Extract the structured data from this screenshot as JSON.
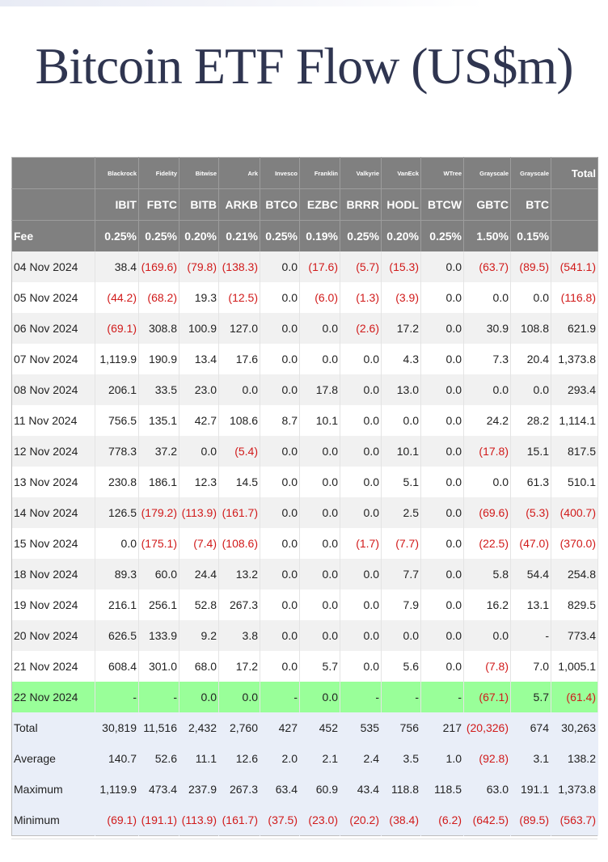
{
  "title": "Bitcoin ETF Flow (US$m)",
  "colors": {
    "header_bg": "#808080",
    "negative": "#d11a1a",
    "highlight": "#99ff99",
    "summary_bg": "#e9eef8"
  },
  "issuers": [
    "Blackrock",
    "Fidelity",
    "Bitwise",
    "Ark",
    "Invesco",
    "Franklin",
    "Valkyrie",
    "VanEck",
    "WTree",
    "Grayscale",
    "Grayscale"
  ],
  "total_header": "Total",
  "tickers": [
    "IBIT",
    "FBTC",
    "BITB",
    "ARKB",
    "BTCO",
    "EZBC",
    "BRRR",
    "HODL",
    "BTCW",
    "GBTC",
    "BTC"
  ],
  "fee_label": "Fee",
  "fees": [
    "0.25%",
    "0.25%",
    "0.20%",
    "0.21%",
    "0.25%",
    "0.19%",
    "0.25%",
    "0.20%",
    "0.25%",
    "1.50%",
    "0.15%"
  ],
  "rows": [
    {
      "date": "04 Nov 2024",
      "values": [
        "38.4",
        "(169.6)",
        "(79.8)",
        "(138.3)",
        "0.0",
        "(17.6)",
        "(5.7)",
        "(15.3)",
        "0.0",
        "(63.7)",
        "(89.5)"
      ],
      "total": "(541.1)"
    },
    {
      "date": "05 Nov 2024",
      "values": [
        "(44.2)",
        "(68.2)",
        "19.3",
        "(12.5)",
        "0.0",
        "(6.0)",
        "(1.3)",
        "(3.9)",
        "0.0",
        "0.0",
        "0.0"
      ],
      "total": "(116.8)"
    },
    {
      "date": "06 Nov 2024",
      "values": [
        "(69.1)",
        "308.8",
        "100.9",
        "127.0",
        "0.0",
        "0.0",
        "(2.6)",
        "17.2",
        "0.0",
        "30.9",
        "108.8"
      ],
      "total": "621.9"
    },
    {
      "date": "07 Nov 2024",
      "values": [
        "1,119.9",
        "190.9",
        "13.4",
        "17.6",
        "0.0",
        "0.0",
        "0.0",
        "4.3",
        "0.0",
        "7.3",
        "20.4"
      ],
      "total": "1,373.8"
    },
    {
      "date": "08 Nov 2024",
      "values": [
        "206.1",
        "33.5",
        "23.0",
        "0.0",
        "0.0",
        "17.8",
        "0.0",
        "13.0",
        "0.0",
        "0.0",
        "0.0"
      ],
      "total": "293.4"
    },
    {
      "date": "11 Nov 2024",
      "values": [
        "756.5",
        "135.1",
        "42.7",
        "108.6",
        "8.7",
        "10.1",
        "0.0",
        "0.0",
        "0.0",
        "24.2",
        "28.2"
      ],
      "total": "1,114.1"
    },
    {
      "date": "12 Nov 2024",
      "values": [
        "778.3",
        "37.2",
        "0.0",
        "(5.4)",
        "0.0",
        "0.0",
        "0.0",
        "10.1",
        "0.0",
        "(17.8)",
        "15.1"
      ],
      "total": "817.5"
    },
    {
      "date": "13 Nov 2024",
      "values": [
        "230.8",
        "186.1",
        "12.3",
        "14.5",
        "0.0",
        "0.0",
        "0.0",
        "5.1",
        "0.0",
        "0.0",
        "61.3"
      ],
      "total": "510.1"
    },
    {
      "date": "14 Nov 2024",
      "values": [
        "126.5",
        "(179.2)",
        "(113.9)",
        "(161.7)",
        "0.0",
        "0.0",
        "0.0",
        "2.5",
        "0.0",
        "(69.6)",
        "(5.3)"
      ],
      "total": "(400.7)"
    },
    {
      "date": "15 Nov 2024",
      "values": [
        "0.0",
        "(175.1)",
        "(7.4)",
        "(108.6)",
        "0.0",
        "0.0",
        "(1.7)",
        "(7.7)",
        "0.0",
        "(22.5)",
        "(47.0)"
      ],
      "total": "(370.0)"
    },
    {
      "date": "18 Nov 2024",
      "values": [
        "89.3",
        "60.0",
        "24.4",
        "13.2",
        "0.0",
        "0.0",
        "0.0",
        "7.7",
        "0.0",
        "5.8",
        "54.4"
      ],
      "total": "254.8"
    },
    {
      "date": "19 Nov 2024",
      "values": [
        "216.1",
        "256.1",
        "52.8",
        "267.3",
        "0.0",
        "0.0",
        "0.0",
        "7.9",
        "0.0",
        "16.2",
        "13.1"
      ],
      "total": "829.5"
    },
    {
      "date": "20 Nov 2024",
      "values": [
        "626.5",
        "133.9",
        "9.2",
        "3.8",
        "0.0",
        "0.0",
        "0.0",
        "0.0",
        "0.0",
        "0.0",
        "-"
      ],
      "total": "773.4"
    },
    {
      "date": "21 Nov 2024",
      "values": [
        "608.4",
        "301.0",
        "68.0",
        "17.2",
        "0.0",
        "5.7",
        "0.0",
        "5.6",
        "0.0",
        "(7.8)",
        "7.0"
      ],
      "total": "1,005.1"
    },
    {
      "date": "22 Nov 2024",
      "values": [
        "-",
        "-",
        "0.0",
        "0.0",
        "-",
        "0.0",
        "-",
        "-",
        "-",
        "(67.1)",
        "5.7"
      ],
      "total": "(61.4)",
      "highlight": true
    }
  ],
  "summary": [
    {
      "label": "Total",
      "values": [
        "30,819",
        "11,516",
        "2,432",
        "2,760",
        "427",
        "452",
        "535",
        "756",
        "217",
        "(20,326)",
        "674"
      ],
      "total": "30,263"
    },
    {
      "label": "Average",
      "values": [
        "140.7",
        "52.6",
        "11.1",
        "12.6",
        "2.0",
        "2.1",
        "2.4",
        "3.5",
        "1.0",
        "(92.8)",
        "3.1"
      ],
      "total": "138.2"
    },
    {
      "label": "Maximum",
      "values": [
        "1,119.9",
        "473.4",
        "237.9",
        "267.3",
        "63.4",
        "60.9",
        "43.4",
        "118.8",
        "118.5",
        "63.0",
        "191.1"
      ],
      "total": "1,373.8"
    },
    {
      "label": "Minimum",
      "values": [
        "(69.1)",
        "(191.1)",
        "(113.9)",
        "(161.7)",
        "(37.5)",
        "(23.0)",
        "(20.2)",
        "(38.4)",
        "(6.2)",
        "(642.5)",
        "(89.5)"
      ],
      "total": "(563.7)"
    }
  ]
}
